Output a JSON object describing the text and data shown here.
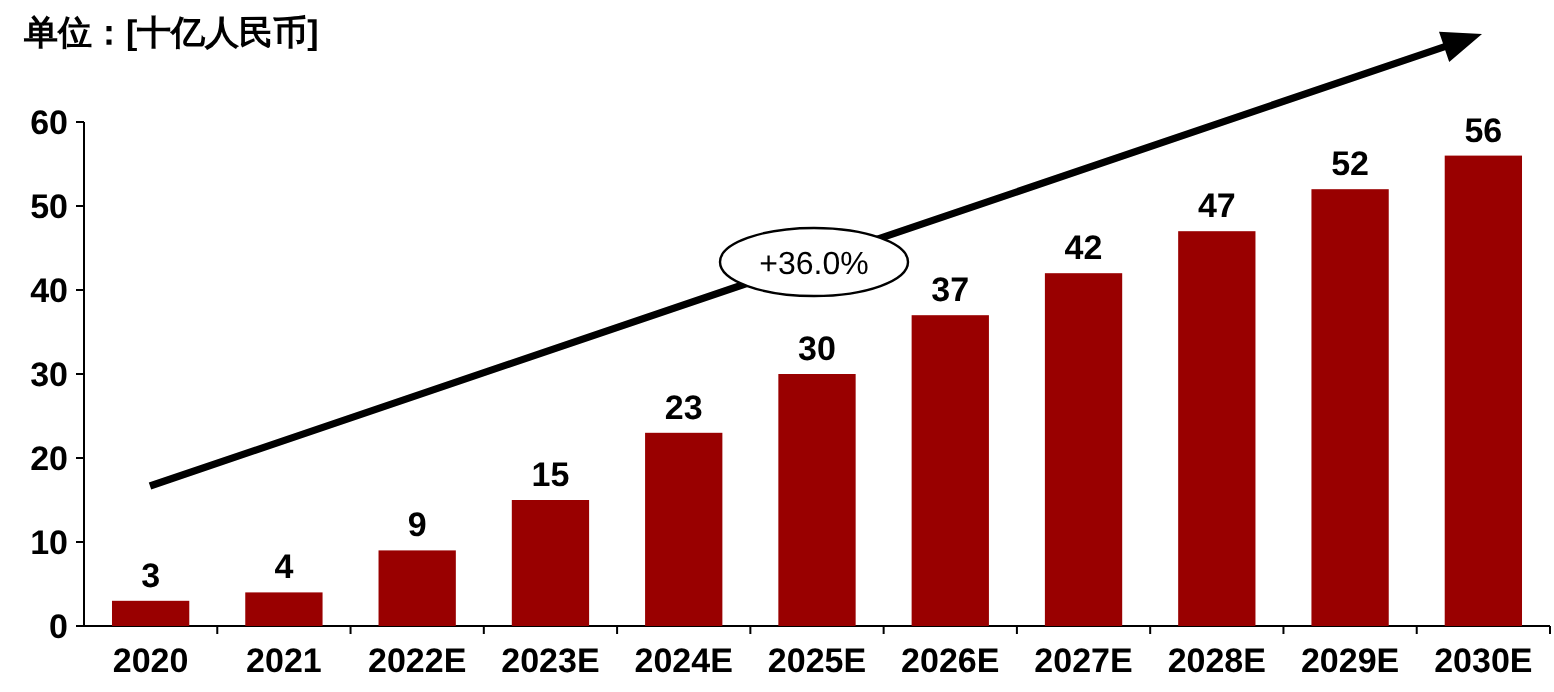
{
  "chart_data": {
    "type": "bar",
    "title": "单位：[十亿人民币]",
    "categories": [
      "2020",
      "2021",
      "2022E",
      "2023E",
      "2024E",
      "2025E",
      "2026E",
      "2027E",
      "2028E",
      "2029E",
      "2030E"
    ],
    "values": [
      3,
      4,
      9,
      15,
      23,
      30,
      37,
      42,
      47,
      52,
      56
    ],
    "color": "#990000",
    "ylim": [
      0,
      60
    ],
    "yticks": [
      0,
      10,
      20,
      30,
      40,
      50,
      60
    ],
    "data_labels": true,
    "annotations": [
      "+36.0%"
    ]
  }
}
